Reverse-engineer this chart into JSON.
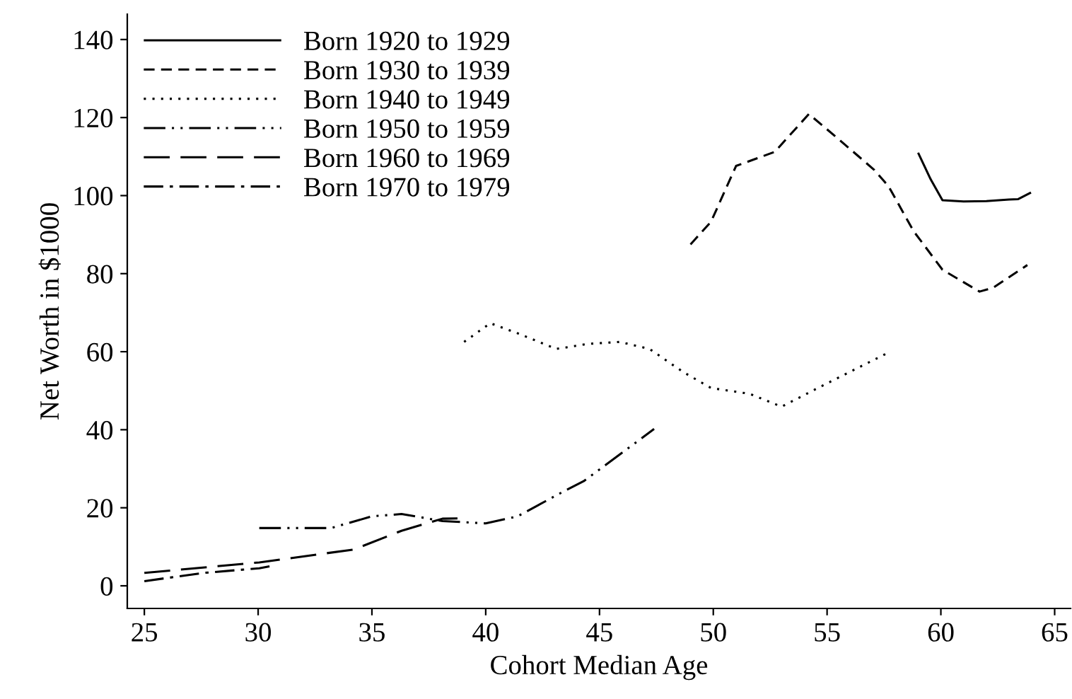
{
  "chart_data": {
    "type": "line",
    "xlabel": "Cohort Median Age",
    "ylabel": "Net Worth in $1000",
    "xlim": [
      24.25,
      65.7
    ],
    "ylim": [
      -5.8,
      146.5
    ],
    "xticks": [
      25,
      30,
      35,
      40,
      45,
      50,
      55,
      60,
      65
    ],
    "yticks": [
      0,
      20,
      40,
      60,
      80,
      100,
      120,
      140
    ],
    "grid": false,
    "legend": "top left",
    "marker": "none",
    "series": [
      {
        "name": "Born 1920 to 1929",
        "color": "#000000",
        "line_style": "solid",
        "x": [
          59.0,
          59.55,
          60.07,
          61.0,
          62.0,
          63.0,
          63.4,
          63.96
        ],
        "values": [
          111,
          104.2,
          98.8,
          98.5,
          98.6,
          99,
          99.1,
          100.8
        ]
      },
      {
        "name": "Born 1930 to 1939",
        "color": "#000000",
        "line_style": "dashed",
        "x": [
          49.0,
          49.9,
          51.0,
          52.7,
          54.2,
          55.5,
          57.07,
          57.7,
          58.8,
          60.07,
          61.7,
          62.3,
          63.8
        ],
        "values": [
          87.5,
          93.3,
          107.6,
          111.2,
          120.9,
          114.5,
          106.6,
          102.4,
          90.9,
          81,
          75.4,
          76.4,
          82.2
        ]
      },
      {
        "name": "Born 1940 to 1949",
        "color": "#000000",
        "line_style": "dotted",
        "x": [
          39.05,
          40.2,
          41.5,
          43.1,
          44.5,
          45.9,
          47.2,
          48.7,
          49.9,
          51.6,
          53.0,
          54.7,
          57.6
        ],
        "values": [
          62.5,
          67.3,
          64.5,
          60.7,
          62.0,
          62.5,
          60.7,
          54.7,
          50.7,
          49.2,
          45.9,
          51,
          59.5
        ]
      },
      {
        "name": "Born 1950 to 1959",
        "color": "#000000",
        "line_style": "dashdotdot",
        "x": [
          30.05,
          33.2,
          35.0,
          36.3,
          38.1,
          40.0,
          41.4,
          43.3,
          44.3,
          47.4
        ],
        "values": [
          14.8,
          14.8,
          17.8,
          18.4,
          16.6,
          16.0,
          17.8,
          23.8,
          26.8,
          40.2
        ]
      },
      {
        "name": "Born 1960 to 1969",
        "color": "#000000",
        "line_style": "longdashed",
        "x": [
          25.0,
          30.05,
          34.2,
          36.3,
          38.1,
          39.0
        ],
        "values": [
          3.3,
          6.0,
          9.3,
          14.1,
          17.2,
          17.3
        ]
      },
      {
        "name": "Born 1970 to 1979",
        "color": "#000000",
        "line_style": "dashdot",
        "x": [
          25.0,
          27.6,
          30.05,
          30.5
        ],
        "values": [
          1.2,
          3.3,
          4.5,
          5.0
        ]
      }
    ]
  }
}
